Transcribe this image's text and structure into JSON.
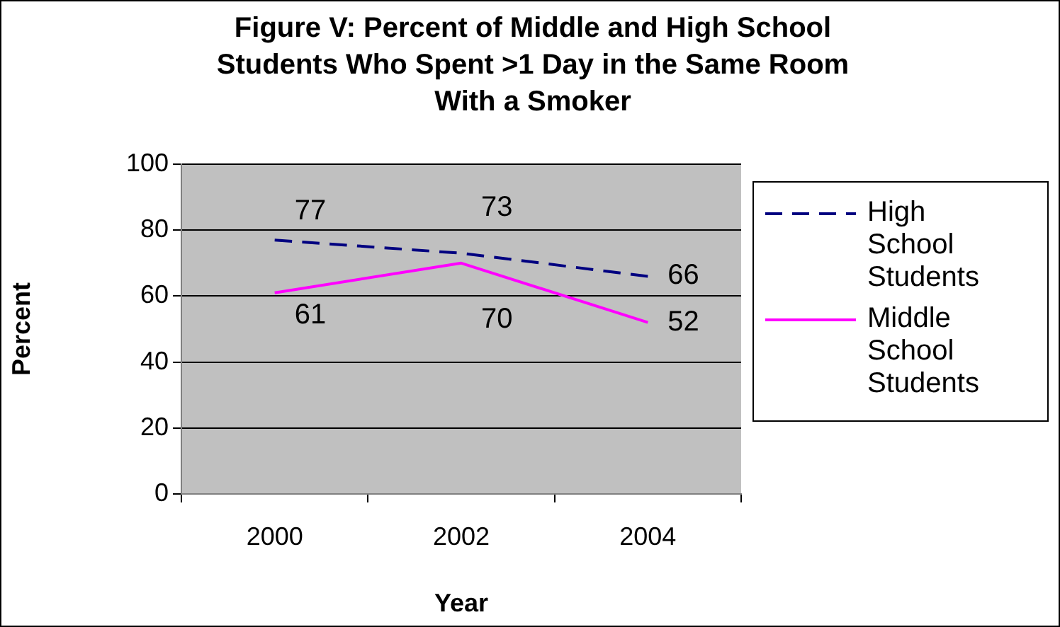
{
  "chart_data": {
    "type": "line",
    "title": "Figure V: Percent of Middle and High School Students Who Spent >1 Day in the Same Room With a Smoker",
    "xlabel": "Year",
    "ylabel": "Percent",
    "categories": [
      "2000",
      "2002",
      "2004"
    ],
    "series": [
      {
        "name": "High School Students",
        "color": "#000080",
        "values": [
          77,
          73,
          66
        ],
        "line_style": "dashed"
      },
      {
        "name": "Middle School Students",
        "color": "#ff00ff",
        "values": [
          61,
          70,
          52
        ],
        "line_style": "solid"
      }
    ],
    "ylim": [
      0,
      100
    ],
    "yticks": [
      0,
      20,
      40,
      60,
      80,
      100
    ],
    "grid": "y",
    "legend": "right",
    "data_labels": true,
    "marker": "none"
  }
}
